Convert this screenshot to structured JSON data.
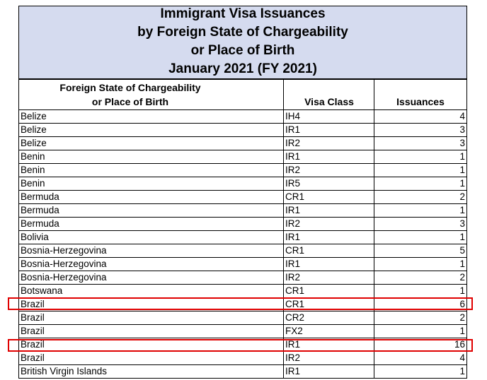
{
  "title": {
    "line1": "Immigrant Visa Issuances",
    "line2": "by Foreign State of Chargeability",
    "line3": "or Place of Birth",
    "line4": "January 2021 (FY 2021)"
  },
  "headers": {
    "col1_line1": "Foreign State of Chargeability",
    "col1_line2": "or Place of Birth",
    "col2": "Visa Class",
    "col3": "Issuances"
  },
  "rows": [
    {
      "country": "Belize",
      "visa_class": "IH4",
      "issuances": "4"
    },
    {
      "country": "Belize",
      "visa_class": "IR1",
      "issuances": "3"
    },
    {
      "country": "Belize",
      "visa_class": "IR2",
      "issuances": "3"
    },
    {
      "country": "Benin",
      "visa_class": "IR1",
      "issuances": "1"
    },
    {
      "country": "Benin",
      "visa_class": "IR2",
      "issuances": "1"
    },
    {
      "country": "Benin",
      "visa_class": "IR5",
      "issuances": "1"
    },
    {
      "country": "Bermuda",
      "visa_class": "CR1",
      "issuances": "2"
    },
    {
      "country": "Bermuda",
      "visa_class": "IR1",
      "issuances": "1"
    },
    {
      "country": "Bermuda",
      "visa_class": "IR2",
      "issuances": "3"
    },
    {
      "country": "Bolivia",
      "visa_class": "IR1",
      "issuances": "1"
    },
    {
      "country": "Bosnia-Herzegovina",
      "visa_class": "CR1",
      "issuances": "5"
    },
    {
      "country": "Bosnia-Herzegovina",
      "visa_class": "IR1",
      "issuances": "1"
    },
    {
      "country": "Bosnia-Herzegovina",
      "visa_class": "IR2",
      "issuances": "2"
    },
    {
      "country": "Botswana",
      "visa_class": "CR1",
      "issuances": "1"
    },
    {
      "country": "Brazil",
      "visa_class": "CR1",
      "issuances": "6"
    },
    {
      "country": "Brazil",
      "visa_class": "CR2",
      "issuances": "2"
    },
    {
      "country": "Brazil",
      "visa_class": "FX2",
      "issuances": "1"
    },
    {
      "country": "Brazil",
      "visa_class": "IR1",
      "issuances": "16"
    },
    {
      "country": "Brazil",
      "visa_class": "IR2",
      "issuances": "4"
    },
    {
      "country": "British Virgin Islands",
      "visa_class": "IR1",
      "issuances": "1"
    }
  ],
  "highlight_color": "#e00000"
}
